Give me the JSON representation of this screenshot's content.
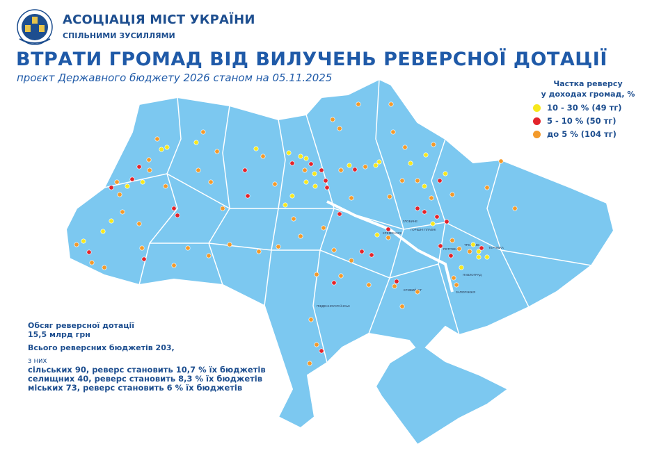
{
  "header": {
    "org_name": "АСОЦІАЦІЯ МІСТ УКРАЇНИ",
    "org_slogan": "СПІЛЬНИМИ ЗУСИЛЛЯМИ",
    "logo_text": "АСОЦІАЦІЯ МІСТ УКРАЇНИ",
    "title": "ВТРАТИ ГРОМАД ВІД ВИЛУЧЕНЬ РЕВЕРСНОЇ ДОТАЦІЇ",
    "subtitle": "проєкт Державного бюджету 2026 станом на 05.11.2025"
  },
  "legend": {
    "title_line1": "Частка реверсу",
    "title_line2": "у доходах громад, %",
    "items": [
      {
        "label": "10 - 30 % (49 тг)",
        "color": "#f7e81c"
      },
      {
        "label": "5 - 10 % (50 тг)",
        "color": "#e3242b"
      },
      {
        "label": "до 5 % (104 тг)",
        "color": "#f39a2b"
      }
    ]
  },
  "stats": {
    "line1": "Обсяг реверсної дотації",
    "line2": "15,5 млрд грн",
    "line3": "Всього реверсних бюджетів  203,",
    "line4": "з них",
    "line5": "сільських 90, реверс становить 10,7 % їх бюджетів",
    "line6": "селищних 40, реверс становить 8,3 % їх бюджетів",
    "line7": "міських 73, реверс становить 6 % їх бюджетів"
  },
  "map": {
    "land_color": "#7cc8f0",
    "border_color": "#ffffff",
    "labels": [
      "ГЛОБИНЕ",
      "ГОРІШНІ ПЛАВНІ",
      "КРЕМЕНЧУК",
      "ПЕТРІВКА",
      "ПАВЛОГРАД",
      "ЗАПОРІЖЖЯ",
      "ПІВДЕННОУКРАЇНСЬК",
      "КРИВИЙ РІГ",
      "ТРОЇЦЬКЕ",
      "ТЕРНІВКА"
    ]
  }
}
